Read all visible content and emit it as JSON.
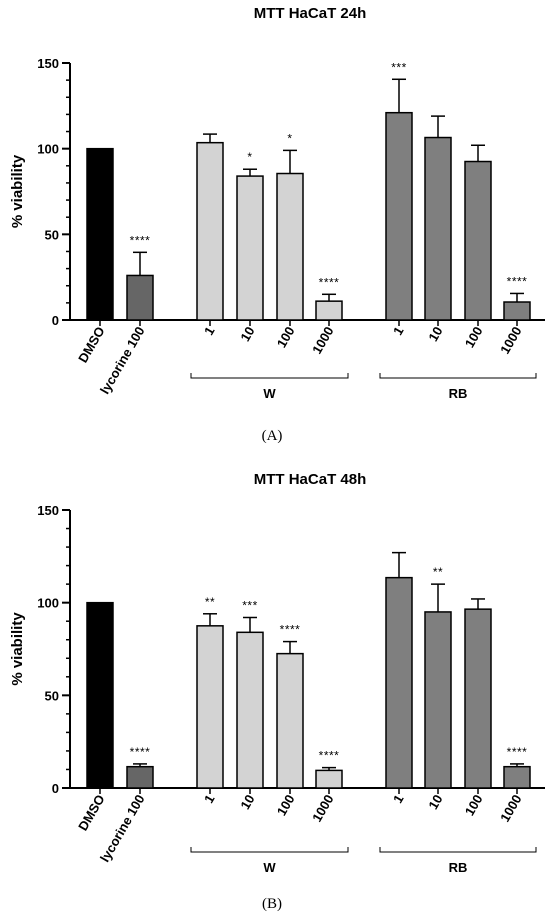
{
  "chart_data": [
    {
      "type": "bar",
      "panel_label": "(A)",
      "title": "MTT HaCaT 24h",
      "ylabel": "% viability",
      "xlabel": "",
      "ylim": [
        0,
        150
      ],
      "yticks": [
        0,
        50,
        100,
        150
      ],
      "categories": [
        "DMSO",
        "lycorine 100",
        "1",
        "10",
        "100",
        "1000",
        "1",
        "10",
        "100",
        "1000"
      ],
      "values": [
        100,
        26,
        103.5,
        84,
        85.5,
        11,
        121,
        106.5,
        92.5,
        10.5
      ],
      "errors": [
        0,
        13.5,
        5,
        4,
        13.5,
        4,
        19.5,
        12.5,
        9.5,
        5
      ],
      "significance": [
        "",
        "****",
        "",
        "*",
        "*",
        "****",
        "***",
        "",
        "",
        "****"
      ],
      "colors": [
        "#000000",
        "#666666",
        "#d3d3d3",
        "#d3d3d3",
        "#d3d3d3",
        "#d3d3d3",
        "#7f7f7f",
        "#7f7f7f",
        "#7f7f7f",
        "#7f7f7f"
      ],
      "groups": [
        {
          "label": "W",
          "members": [
            2,
            3,
            4,
            5
          ]
        },
        {
          "label": "RB",
          "members": [
            6,
            7,
            8,
            9
          ]
        }
      ],
      "grid": false,
      "legend": "none"
    },
    {
      "type": "bar",
      "panel_label": "(B)",
      "title": "MTT HaCaT 48h",
      "ylabel": "% viability",
      "xlabel": "",
      "ylim": [
        0,
        150
      ],
      "yticks": [
        0,
        50,
        100,
        150
      ],
      "categories": [
        "DMSO",
        "lycorine 100",
        "1",
        "10",
        "100",
        "1000",
        "1",
        "10",
        "100",
        "1000"
      ],
      "values": [
        100,
        11.5,
        87.5,
        84,
        72.5,
        9.5,
        113.5,
        95,
        96.5,
        11.5
      ],
      "errors": [
        0,
        1.5,
        6.5,
        8,
        6.5,
        1.5,
        13.5,
        15,
        5.5,
        1.5
      ],
      "significance": [
        "",
        "****",
        "**",
        "***",
        "****",
        "****",
        "",
        "**",
        "",
        "****"
      ],
      "colors": [
        "#000000",
        "#666666",
        "#d3d3d3",
        "#d3d3d3",
        "#d3d3d3",
        "#d3d3d3",
        "#7f7f7f",
        "#7f7f7f",
        "#7f7f7f",
        "#7f7f7f"
      ],
      "groups": [
        {
          "label": "W",
          "members": [
            2,
            3,
            4,
            5
          ]
        },
        {
          "label": "RB",
          "members": [
            6,
            7,
            8,
            9
          ]
        }
      ],
      "grid": false,
      "legend": "none"
    }
  ]
}
